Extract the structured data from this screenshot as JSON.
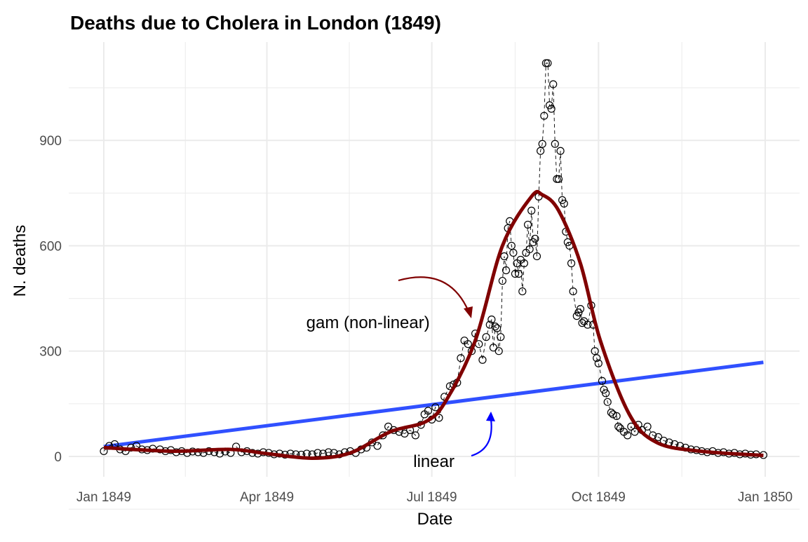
{
  "chart_data": {
    "type": "scatter",
    "title": "Deaths due to Cholera in London (1849)",
    "xlabel": "Date",
    "ylabel": "N. deaths",
    "xlim": [
      "1849-01-01",
      "1850-01-01"
    ],
    "ylim": [
      -58,
      1180
    ],
    "x_ticks": [
      {
        "date": "1849-01-01",
        "label": "Jan 1849"
      },
      {
        "date": "1849-04-01",
        "label": "Apr 1849"
      },
      {
        "date": "1849-07-01",
        "label": "Jul 1849"
      },
      {
        "date": "1849-10-01",
        "label": "Oct 1849"
      },
      {
        "date": "1850-01-01",
        "label": "Jan 1850"
      }
    ],
    "y_ticks": [
      0,
      300,
      600,
      900
    ],
    "grid": true,
    "colors": {
      "points": "#000000",
      "gam": "#800000",
      "linear": "#3050ff",
      "linear_arrow": "#0000ff",
      "grid": "#ebebeb"
    },
    "points": [
      [
        "1849-01-01",
        15
      ],
      [
        "1849-01-04",
        30
      ],
      [
        "1849-01-07",
        35
      ],
      [
        "1849-01-10",
        20
      ],
      [
        "1849-01-13",
        15
      ],
      [
        "1849-01-16",
        25
      ],
      [
        "1849-01-19",
        30
      ],
      [
        "1849-01-22",
        20
      ],
      [
        "1849-01-25",
        18
      ],
      [
        "1849-01-28",
        22
      ],
      [
        "1849-02-01",
        20
      ],
      [
        "1849-02-04",
        15
      ],
      [
        "1849-02-07",
        18
      ],
      [
        "1849-02-10",
        12
      ],
      [
        "1849-02-13",
        15
      ],
      [
        "1849-02-16",
        10
      ],
      [
        "1849-02-19",
        14
      ],
      [
        "1849-02-22",
        12
      ],
      [
        "1849-02-25",
        10
      ],
      [
        "1849-02-28",
        15
      ],
      [
        "1849-03-03",
        12
      ],
      [
        "1849-03-06",
        8
      ],
      [
        "1849-03-09",
        14
      ],
      [
        "1849-03-12",
        10
      ],
      [
        "1849-03-15",
        28
      ],
      [
        "1849-03-18",
        12
      ],
      [
        "1849-03-21",
        15
      ],
      [
        "1849-03-24",
        10
      ],
      [
        "1849-03-27",
        8
      ],
      [
        "1849-03-30",
        12
      ],
      [
        "1849-04-02",
        10
      ],
      [
        "1849-04-05",
        6
      ],
      [
        "1849-04-08",
        8
      ],
      [
        "1849-04-11",
        5
      ],
      [
        "1849-04-14",
        8
      ],
      [
        "1849-04-17",
        6
      ],
      [
        "1849-04-20",
        5
      ],
      [
        "1849-04-23",
        8
      ],
      [
        "1849-04-26",
        6
      ],
      [
        "1849-04-29",
        10
      ],
      [
        "1849-05-02",
        8
      ],
      [
        "1849-05-05",
        12
      ],
      [
        "1849-05-08",
        10
      ],
      [
        "1849-05-11",
        6
      ],
      [
        "1849-05-14",
        12
      ],
      [
        "1849-05-17",
        15
      ],
      [
        "1849-05-20",
        10
      ],
      [
        "1849-05-23",
        20
      ],
      [
        "1849-05-26",
        25
      ],
      [
        "1849-05-29",
        40
      ],
      [
        "1849-06-01",
        30
      ],
      [
        "1849-06-04",
        60
      ],
      [
        "1849-06-07",
        85
      ],
      [
        "1849-06-10",
        75
      ],
      [
        "1849-06-13",
        70
      ],
      [
        "1849-06-16",
        65
      ],
      [
        "1849-06-19",
        75
      ],
      [
        "1849-06-22",
        60
      ],
      [
        "1849-06-25",
        90
      ],
      [
        "1849-06-27",
        120
      ],
      [
        "1849-06-29",
        130
      ],
      [
        "1849-07-01",
        105
      ],
      [
        "1849-07-03",
        140
      ],
      [
        "1849-07-05",
        110
      ],
      [
        "1849-07-08",
        170
      ],
      [
        "1849-07-11",
        200
      ],
      [
        "1849-07-13",
        205
      ],
      [
        "1849-07-15",
        210
      ],
      [
        "1849-07-17",
        280
      ],
      [
        "1849-07-19",
        330
      ],
      [
        "1849-07-21",
        320
      ],
      [
        "1849-07-23",
        300
      ],
      [
        "1849-07-25",
        350
      ],
      [
        "1849-07-27",
        320
      ],
      [
        "1849-07-29",
        275
      ],
      [
        "1849-07-31",
        340
      ],
      [
        "1849-08-02",
        375
      ],
      [
        "1849-08-03",
        390
      ],
      [
        "1849-08-04",
        310
      ],
      [
        "1849-08-05",
        370
      ],
      [
        "1849-08-06",
        365
      ],
      [
        "1849-08-07",
        300
      ],
      [
        "1849-08-08",
        340
      ],
      [
        "1849-08-09",
        500
      ],
      [
        "1849-08-10",
        570
      ],
      [
        "1849-08-11",
        530
      ],
      [
        "1849-08-12",
        650
      ],
      [
        "1849-08-13",
        670
      ],
      [
        "1849-08-14",
        600
      ],
      [
        "1849-08-15",
        580
      ],
      [
        "1849-08-16",
        520
      ],
      [
        "1849-08-17",
        550
      ],
      [
        "1849-08-18",
        520
      ],
      [
        "1849-08-19",
        560
      ],
      [
        "1849-08-20",
        470
      ],
      [
        "1849-08-21",
        550
      ],
      [
        "1849-08-22",
        580
      ],
      [
        "1849-08-23",
        660
      ],
      [
        "1849-08-24",
        590
      ],
      [
        "1849-08-25",
        700
      ],
      [
        "1849-08-26",
        610
      ],
      [
        "1849-08-27",
        620
      ],
      [
        "1849-08-28",
        570
      ],
      [
        "1849-08-29",
        740
      ],
      [
        "1849-08-30",
        870
      ],
      [
        "1849-08-31",
        890
      ],
      [
        "1849-09-01",
        970
      ],
      [
        "1849-09-02",
        1120
      ],
      [
        "1849-09-03",
        1120
      ],
      [
        "1849-09-04",
        1000
      ],
      [
        "1849-09-05",
        990
      ],
      [
        "1849-09-06",
        1060
      ],
      [
        "1849-09-07",
        890
      ],
      [
        "1849-09-08",
        790
      ],
      [
        "1849-09-09",
        790
      ],
      [
        "1849-09-10",
        870
      ],
      [
        "1849-09-11",
        730
      ],
      [
        "1849-09-12",
        720
      ],
      [
        "1849-09-13",
        640
      ],
      [
        "1849-09-14",
        610
      ],
      [
        "1849-09-15",
        600
      ],
      [
        "1849-09-16",
        550
      ],
      [
        "1849-09-17",
        470
      ],
      [
        "1849-09-19",
        400
      ],
      [
        "1849-09-20",
        410
      ],
      [
        "1849-09-21",
        420
      ],
      [
        "1849-09-22",
        380
      ],
      [
        "1849-09-23",
        385
      ],
      [
        "1849-09-25",
        375
      ],
      [
        "1849-09-27",
        430
      ],
      [
        "1849-09-28",
        375
      ],
      [
        "1849-09-29",
        300
      ],
      [
        "1849-09-30",
        280
      ],
      [
        "1849-10-01",
        265
      ],
      [
        "1849-10-03",
        215
      ],
      [
        "1849-10-04",
        190
      ],
      [
        "1849-10-05",
        180
      ],
      [
        "1849-10-06",
        155
      ],
      [
        "1849-10-08",
        125
      ],
      [
        "1849-10-09",
        120
      ],
      [
        "1849-10-11",
        115
      ],
      [
        "1849-10-12",
        85
      ],
      [
        "1849-10-13",
        80
      ],
      [
        "1849-10-15",
        70
      ],
      [
        "1849-10-17",
        60
      ],
      [
        "1849-10-19",
        85
      ],
      [
        "1849-10-21",
        70
      ],
      [
        "1849-10-23",
        90
      ],
      [
        "1849-10-25",
        75
      ],
      [
        "1849-10-28",
        85
      ],
      [
        "1849-10-31",
        60
      ],
      [
        "1849-11-03",
        55
      ],
      [
        "1849-11-06",
        45
      ],
      [
        "1849-11-09",
        40
      ],
      [
        "1849-11-12",
        35
      ],
      [
        "1849-11-15",
        30
      ],
      [
        "1849-11-18",
        25
      ],
      [
        "1849-11-21",
        20
      ],
      [
        "1849-11-24",
        18
      ],
      [
        "1849-11-27",
        15
      ],
      [
        "1849-11-30",
        12
      ],
      [
        "1849-12-03",
        15
      ],
      [
        "1849-12-06",
        10
      ],
      [
        "1849-12-09",
        12
      ],
      [
        "1849-12-12",
        8
      ],
      [
        "1849-12-15",
        10
      ],
      [
        "1849-12-18",
        6
      ],
      [
        "1849-12-21",
        8
      ],
      [
        "1849-12-24",
        5
      ],
      [
        "1849-12-27",
        6
      ],
      [
        "1849-12-31",
        4
      ]
    ],
    "gam_fit": [
      [
        "1849-01-01",
        25
      ],
      [
        "1849-02-08",
        15
      ],
      [
        "1849-03-12",
        20
      ],
      [
        "1849-04-01",
        8
      ],
      [
        "1849-04-26",
        -5
      ],
      [
        "1849-05-17",
        10
      ],
      [
        "1849-06-08",
        70
      ],
      [
        "1849-06-28",
        100
      ],
      [
        "1849-07-09",
        160
      ],
      [
        "1849-07-25",
        330
      ],
      [
        "1849-08-09",
        600
      ],
      [
        "1849-08-25",
        740
      ],
      [
        "1849-08-31",
        745
      ],
      [
        "1849-09-09",
        700
      ],
      [
        "1849-09-21",
        550
      ],
      [
        "1849-10-02",
        330
      ],
      [
        "1849-10-18",
        120
      ],
      [
        "1849-11-02",
        40
      ],
      [
        "1849-11-26",
        15
      ],
      [
        "1849-12-31",
        3
      ]
    ],
    "linear_fit": [
      [
        "1849-01-01",
        28
      ],
      [
        "1849-12-31",
        268
      ]
    ],
    "annotations": [
      {
        "text": "gam (non-linear)",
        "date": "1849-04-15",
        "value": 385
      },
      {
        "text": "linear",
        "date": "1849-07-01",
        "value": -15
      }
    ]
  }
}
